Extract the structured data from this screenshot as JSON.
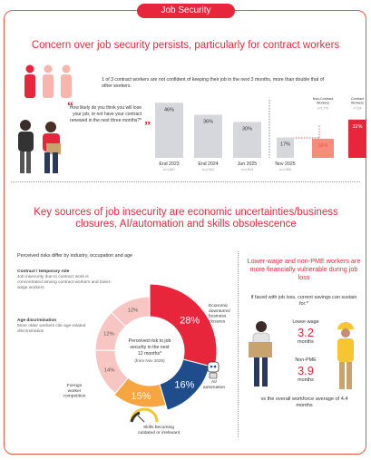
{
  "page": {
    "title": "Job Security",
    "headline1": "Concern over job security persists, particularly for contract workers",
    "stat": "1 of 3 contract workers are not confident of keeping their job in the next 3 months, more than double that of other workers.",
    "quote": "How likely do you think you will lose your job, or not have your contract renewed in the next three months?*",
    "headline2": "Key sources of job insecurity are economic uncertainties/business closures, AI/automation and skills obsolescence"
  },
  "chart_data": [
    {
      "type": "bar",
      "categories": [
        "End 2023",
        "End 2024",
        "Jun 2025",
        "Nov 2025",
        "Non-Contract Workers",
        "Contract Workers"
      ],
      "category_labels": [
        "End 2023",
        "End 2024",
        "Jun 2025",
        "Nov 2025",
        "Non-Contract\nWorkers",
        "Contract\nWorkers"
      ],
      "sample_sizes": [
        "n=1,697",
        "n=1,912",
        "n=1,913",
        "n=1,903",
        "n=1,779",
        "n=124"
      ],
      "values": [
        46,
        36,
        30,
        17,
        16,
        32
      ],
      "value_labels": [
        "46%",
        "36%",
        "30%",
        "17%",
        "16%",
        "32%"
      ],
      "colors": [
        "#d6d7dc",
        "#d6d7dc",
        "#d6d7dc",
        "#d6d7dc",
        "#f58c7c",
        "#e8263b"
      ],
      "ylim": [
        0,
        50
      ]
    },
    {
      "type": "pie",
      "subtitle": "Perceived risks differ by industry, occupation and age",
      "center_label": "Perceived risk to job security in the next 12 months*",
      "center_sub": "(from Nov 2025)",
      "categories": [
        "Economic downturns/ business closures",
        "AI/ automation",
        "Skills becoming outdated or irrelevant",
        "Foreign worker competition",
        "Age discrimination",
        "Contract / temporary role"
      ],
      "values": [
        28,
        16,
        15,
        14,
        12,
        12
      ],
      "value_labels": [
        "28%",
        "16%",
        "15%",
        "14%",
        "12%",
        "12%"
      ],
      "colors": [
        "#e8263b",
        "#1f4d8c",
        "#f7a541",
        "#f8c6c2",
        "#f8c6c2",
        "#f8c6c2"
      ]
    }
  ],
  "annotations": {
    "contract": {
      "title": "Contract / temporary role",
      "text": "Job insecurity due to contract work is concentrated among contract workers and lower-wage workers"
    },
    "age": {
      "title": "Age discrimination",
      "text": "More older workers cite age-related discrimination"
    }
  },
  "right_panel": {
    "headline": "Lower-wage and non-PME workers are more financially vulnerable during job loss",
    "sub": "If faced with job loss, current savings can sustain for:*",
    "lower_wage_label": "Lower-wage",
    "lower_wage_value": "3.2",
    "non_pme_label": "Non-PME",
    "non_pme_value": "3.9",
    "months": "months",
    "footer": "vs the overall workforce average of 4.4 months"
  }
}
